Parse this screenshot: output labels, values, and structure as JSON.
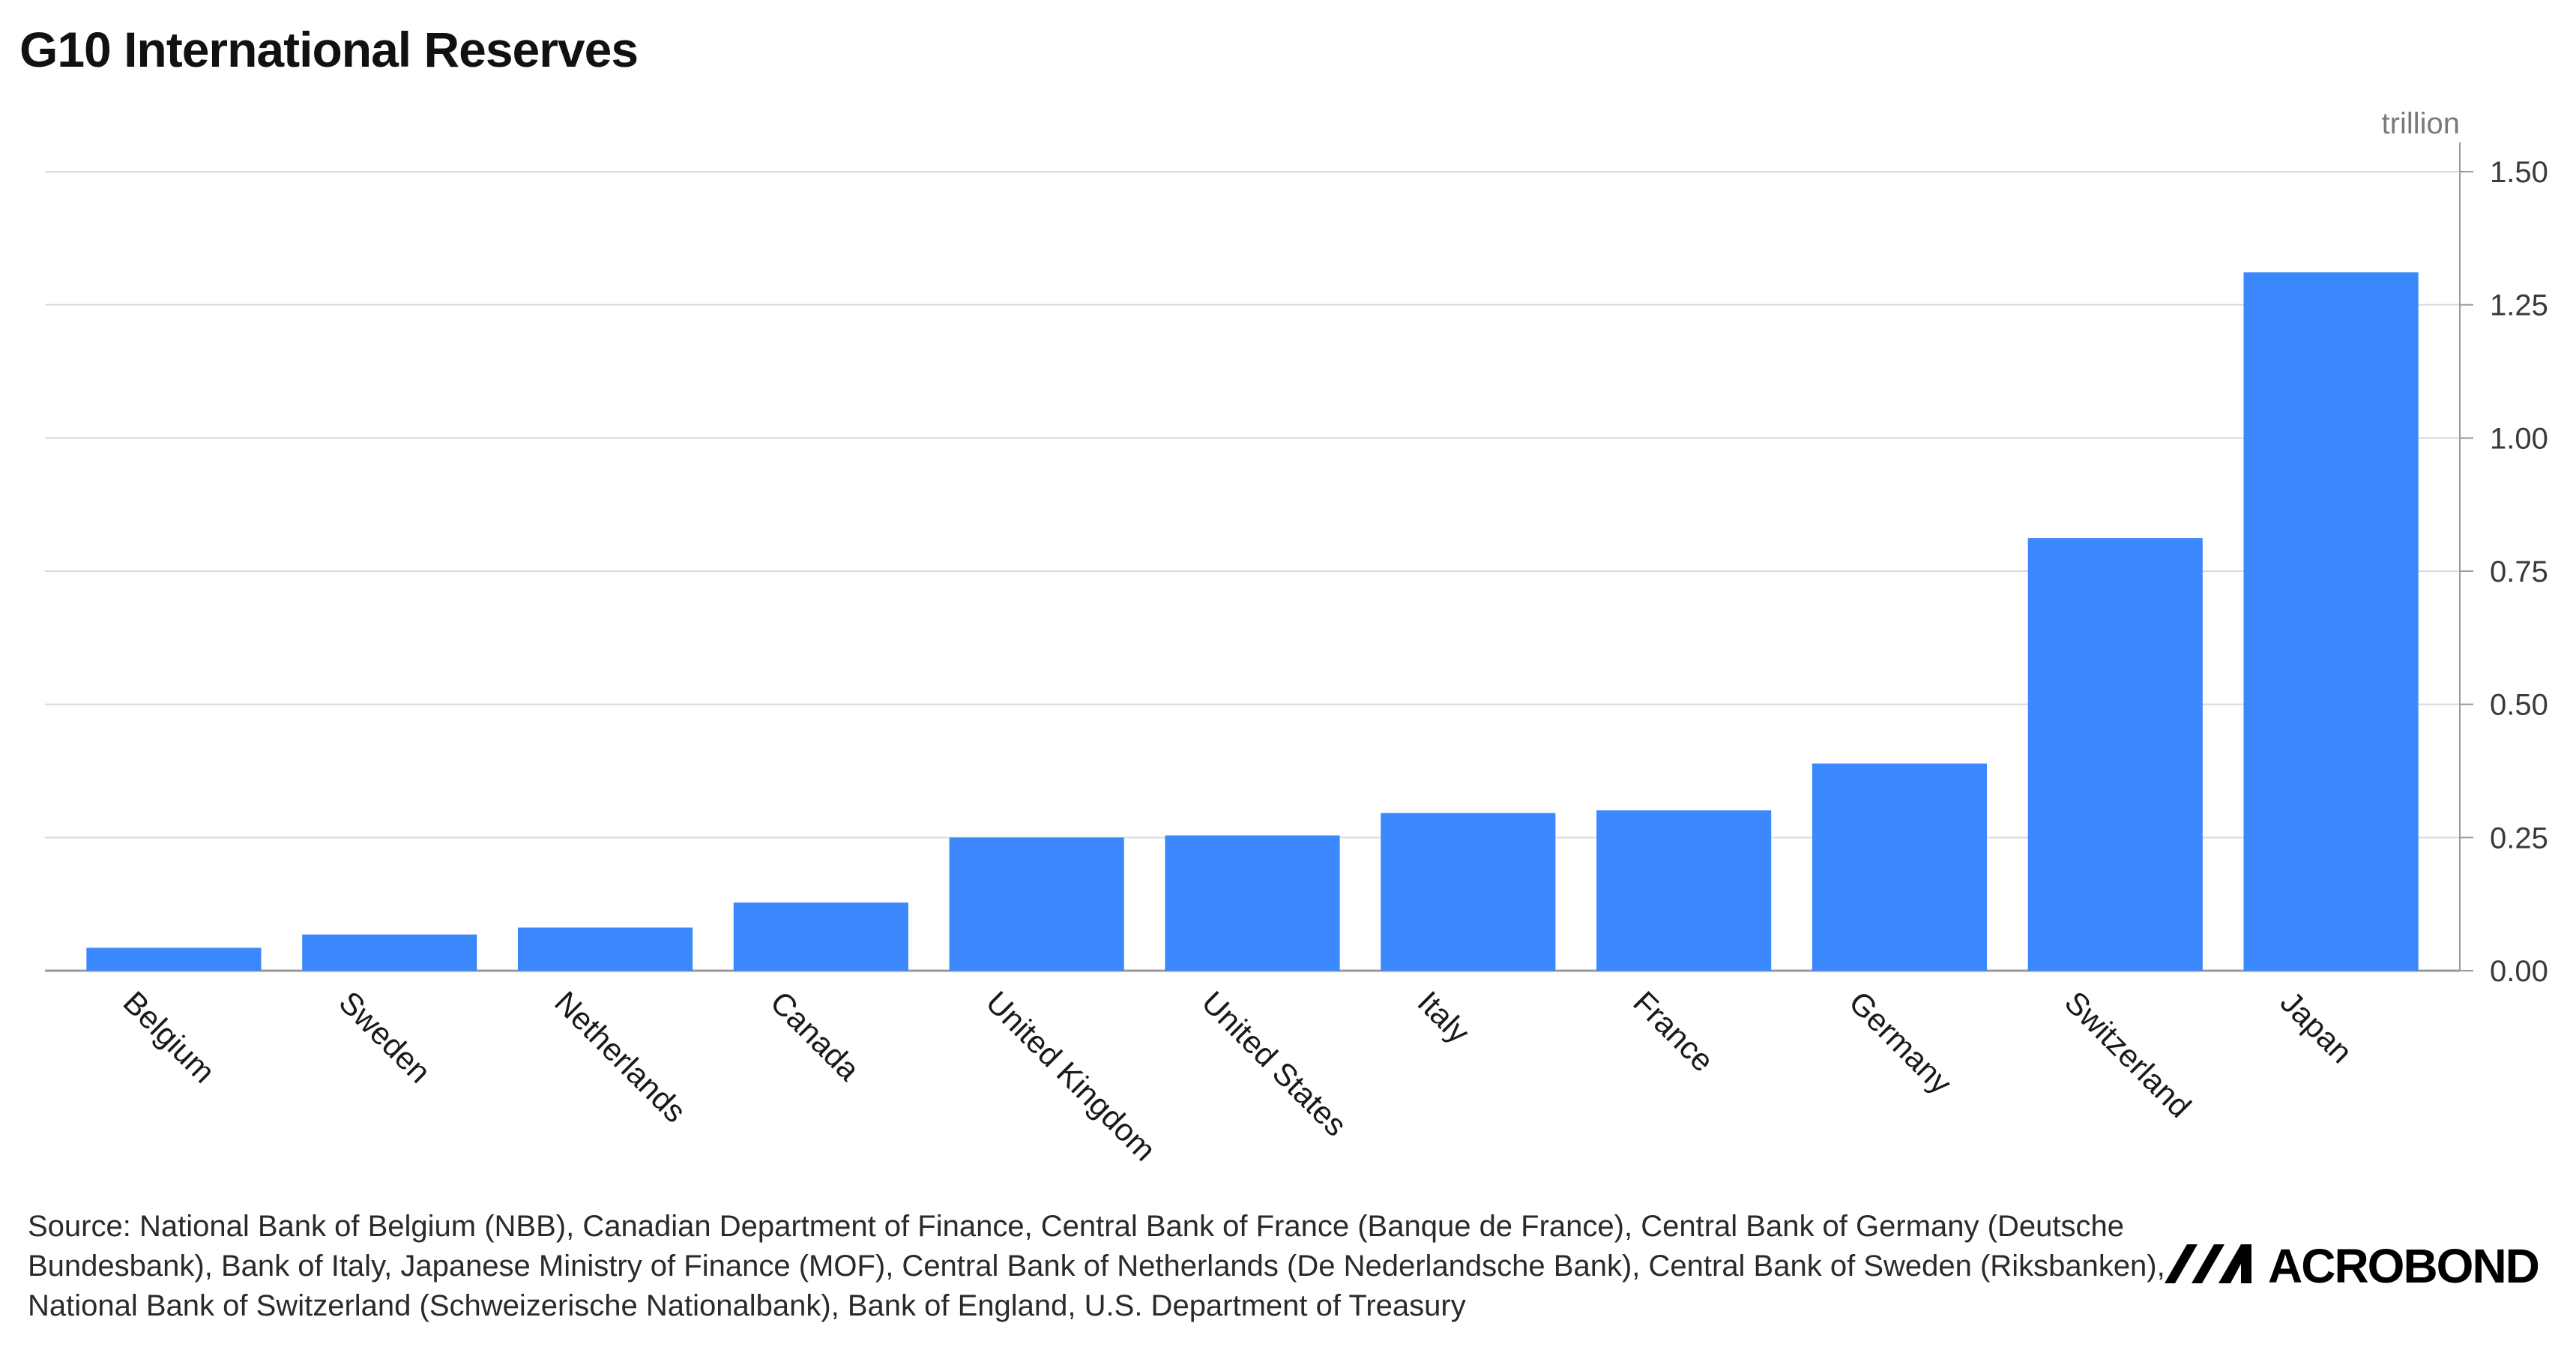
{
  "title": "G10 International Reserves",
  "chart_data": {
    "type": "bar",
    "unit_label": "trillion",
    "categories": [
      "Belgium",
      "Sweden",
      "Netherlands",
      "Canada",
      "United Kingdom",
      "United States",
      "Italy",
      "France",
      "Germany",
      "Switzerland",
      "Japan"
    ],
    "values": [
      0.043,
      0.068,
      0.081,
      0.128,
      0.25,
      0.254,
      0.296,
      0.301,
      0.389,
      0.812,
      1.311
    ],
    "ylim": [
      0,
      1.5
    ],
    "yticks": [
      "0.00",
      "0.25",
      "0.50",
      "0.75",
      "1.00",
      "1.25",
      "1.50"
    ],
    "ytick_values": [
      0,
      0.25,
      0.5,
      0.75,
      1.0,
      1.25,
      1.5
    ],
    "y_axis_side": "right",
    "grid": true,
    "bar_color": "#3b88fd",
    "grid_color": "#d9d9d9",
    "axis_color": "#999999"
  },
  "source": "Source: National Bank of Belgium (NBB), Canadian Department of Finance, Central Bank of France (Banque de France), Central Bank of Germany (Deutsche Bundesbank), Bank of Italy, Japanese Ministry of Finance (MOF), Central Bank of Netherlands (De Nederlandsche Bank), Central Bank of Sweden (Riksbanken), National Bank of Switzerland (Schweizerische Nationalbank), Bank of England, U.S. Department of Treasury",
  "logo": {
    "text": "ACROBOND"
  }
}
